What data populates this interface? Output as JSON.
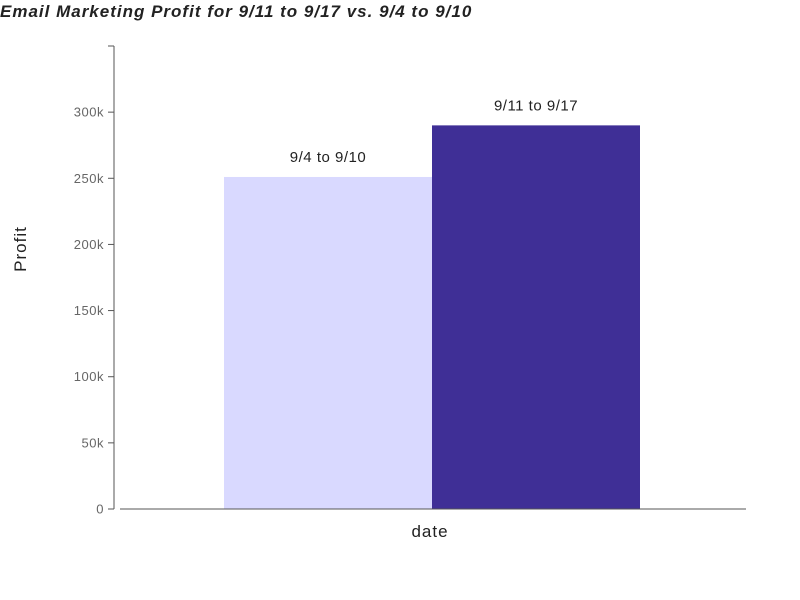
{
  "chart_data": {
    "type": "bar",
    "title": "Email Marketing Profit for 9/11 to 9/17 vs. 9/4 to 9/10",
    "xlabel": "date",
    "ylabel": "Profit",
    "ylim": [
      0,
      350000
    ],
    "yticks": [
      {
        "value": 0,
        "label": "0"
      },
      {
        "value": 50000,
        "label": "50k"
      },
      {
        "value": 100000,
        "label": "100k"
      },
      {
        "value": 150000,
        "label": "150k"
      },
      {
        "value": 200000,
        "label": "200k"
      },
      {
        "value": 250000,
        "label": "250k"
      },
      {
        "value": 300000,
        "label": "300k"
      }
    ],
    "series": [
      {
        "name": "9/4 to 9/10",
        "value": 251000,
        "color": "#d9d9ff"
      },
      {
        "name": "9/11 to 9/17",
        "value": 290000,
        "color": "#3f2f96"
      }
    ],
    "grid": false,
    "legend": "none"
  }
}
